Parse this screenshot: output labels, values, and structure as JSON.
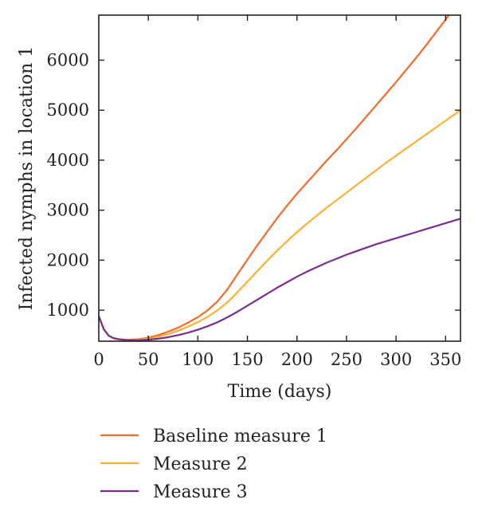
{
  "chart_data": {
    "type": "line",
    "xlabel": "Time (days)",
    "ylabel": "Infected nymphs in location 1",
    "xlim": [
      0,
      365
    ],
    "ylim": [
      380,
      6900
    ],
    "xticks": [
      0,
      50,
      100,
      150,
      200,
      250,
      300,
      350
    ],
    "yticks": [
      1000,
      2000,
      3000,
      4000,
      5000,
      6000
    ],
    "grid": false,
    "legend_position": "below",
    "series": [
      {
        "name": "Baseline measure 1",
        "color": "#f26a2a",
        "x": [
          0,
          5,
          10,
          15,
          20,
          25,
          30,
          40,
          50,
          60,
          70,
          80,
          90,
          100,
          110,
          120,
          130,
          140,
          150,
          160,
          170,
          180,
          190,
          200,
          210,
          220,
          230,
          240,
          250,
          260,
          270,
          280,
          290,
          300,
          310,
          320,
          330,
          340,
          350,
          360,
          365
        ],
        "y": [
          880,
          620,
          490,
          440,
          420,
          410,
          410,
          420,
          450,
          500,
          570,
          650,
          750,
          860,
          1000,
          1180,
          1420,
          1720,
          2010,
          2300,
          2570,
          2840,
          3090,
          3330,
          3550,
          3770,
          3990,
          4200,
          4420,
          4640,
          4870,
          5100,
          5330,
          5560,
          5800,
          6040,
          6290,
          6550,
          6810,
          7080,
          7200
        ]
      },
      {
        "name": "Measure 2",
        "color": "#fbb034",
        "x": [
          0,
          5,
          10,
          15,
          20,
          25,
          30,
          40,
          50,
          60,
          70,
          80,
          90,
          100,
          110,
          120,
          130,
          140,
          150,
          160,
          170,
          180,
          190,
          200,
          210,
          220,
          230,
          240,
          250,
          260,
          270,
          280,
          290,
          300,
          310,
          320,
          330,
          340,
          350,
          360,
          365
        ],
        "y": [
          880,
          620,
          490,
          440,
          420,
          410,
          405,
          410,
          430,
          470,
          520,
          590,
          670,
          760,
          870,
          1000,
          1160,
          1360,
          1570,
          1780,
          1990,
          2190,
          2380,
          2560,
          2730,
          2890,
          3050,
          3200,
          3350,
          3500,
          3650,
          3800,
          3950,
          4090,
          4230,
          4370,
          4510,
          4650,
          4790,
          4930,
          5000
        ]
      },
      {
        "name": "Measure 3",
        "color": "#7b2d8e",
        "x": [
          0,
          5,
          10,
          15,
          20,
          25,
          30,
          40,
          50,
          60,
          70,
          80,
          90,
          100,
          110,
          120,
          130,
          140,
          150,
          160,
          170,
          180,
          190,
          200,
          210,
          220,
          230,
          240,
          250,
          260,
          270,
          280,
          290,
          300,
          310,
          320,
          330,
          340,
          350,
          360,
          365
        ],
        "y": [
          880,
          620,
          490,
          440,
          420,
          410,
          400,
          400,
          410,
          430,
          460,
          500,
          550,
          610,
          680,
          760,
          860,
          970,
          1090,
          1210,
          1330,
          1450,
          1560,
          1670,
          1770,
          1860,
          1950,
          2030,
          2110,
          2180,
          2250,
          2320,
          2380,
          2440,
          2500,
          2560,
          2620,
          2680,
          2740,
          2800,
          2830
        ]
      }
    ]
  }
}
